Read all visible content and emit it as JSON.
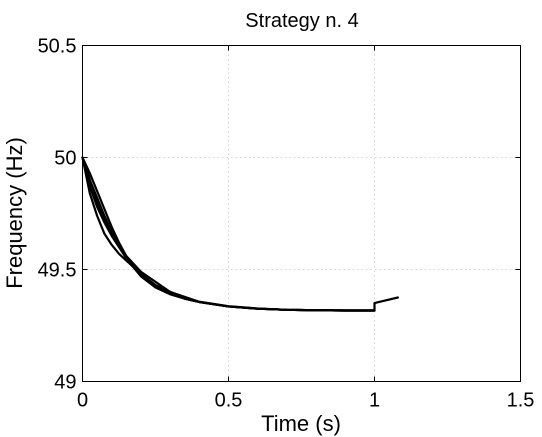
{
  "chart_data": {
    "type": "line",
    "title": "Strategy n. 4",
    "xlabel": "Time (s)",
    "ylabel": "Frequency (Hz)",
    "xlim": [
      0,
      1.5
    ],
    "ylim": [
      49,
      50.5
    ],
    "xticks": [
      0,
      0.5,
      1,
      1.5
    ],
    "xtick_labels": [
      "0",
      "0.5",
      "1",
      "1.5"
    ],
    "yticks": [
      49,
      49.5,
      50,
      50.5
    ],
    "ytick_labels": [
      "49",
      "49.5",
      "50",
      "50.5"
    ],
    "grid": true,
    "line_color": "#000000",
    "series": [
      {
        "x": [
          0,
          0.025,
          0.05,
          0.075,
          0.1,
          0.125,
          0.15,
          0.175,
          0.2,
          0.25,
          0.3,
          0.35,
          0.4,
          0.5,
          0.6,
          0.7,
          0.8,
          0.9,
          1.0
        ],
        "y": [
          50.0,
          49.87,
          49.78,
          49.71,
          49.65,
          49.6,
          49.55,
          49.51,
          49.48,
          49.43,
          49.4,
          49.37,
          49.355,
          49.335,
          49.325,
          49.32,
          49.318,
          49.317,
          49.317
        ]
      },
      {
        "x": [
          0,
          0.025,
          0.05,
          0.075,
          0.1,
          0.125,
          0.15,
          0.175,
          0.2,
          0.25,
          0.3,
          0.35,
          0.4,
          0.5,
          0.6,
          0.7,
          0.8,
          0.9,
          1.0
        ],
        "y": [
          50.0,
          49.9,
          49.82,
          49.74,
          49.67,
          49.61,
          49.55,
          49.51,
          49.47,
          49.42,
          49.39,
          49.37,
          49.355,
          49.335,
          49.325,
          49.32,
          49.318,
          49.317,
          49.317
        ]
      },
      {
        "x": [
          0,
          0.025,
          0.05,
          0.075,
          0.1,
          0.125,
          0.15,
          0.175,
          0.2,
          0.25,
          0.3,
          0.35,
          0.4,
          0.5,
          0.6,
          0.7,
          0.8,
          0.9,
          1.0
        ],
        "y": [
          50.0,
          49.93,
          49.85,
          49.77,
          49.69,
          49.62,
          49.56,
          49.51,
          49.47,
          49.42,
          49.39,
          49.37,
          49.355,
          49.335,
          49.325,
          49.32,
          49.318,
          49.317,
          49.317
        ]
      },
      {
        "x": [
          0,
          0.025,
          0.05,
          0.075,
          0.1,
          0.125,
          0.15,
          0.175,
          0.2,
          0.25,
          0.3,
          0.35,
          0.4,
          0.5,
          0.6,
          0.7,
          0.8,
          0.9,
          1.0
        ],
        "y": [
          50.0,
          49.84,
          49.74,
          49.66,
          49.61,
          49.57,
          49.54,
          49.51,
          49.48,
          49.43,
          49.4,
          49.37,
          49.355,
          49.335,
          49.325,
          49.32,
          49.318,
          49.317,
          49.317
        ]
      },
      {
        "x": [
          0,
          0.05,
          0.1,
          0.15,
          0.2,
          0.3,
          0.4,
          0.5,
          0.6,
          0.7,
          0.8,
          0.9,
          1.0,
          1.0,
          1.08
        ],
        "y": [
          50.0,
          49.8,
          49.66,
          49.56,
          49.49,
          49.4,
          49.356,
          49.336,
          49.326,
          49.32,
          49.318,
          49.317,
          49.317,
          49.35,
          49.375
        ]
      }
    ]
  }
}
